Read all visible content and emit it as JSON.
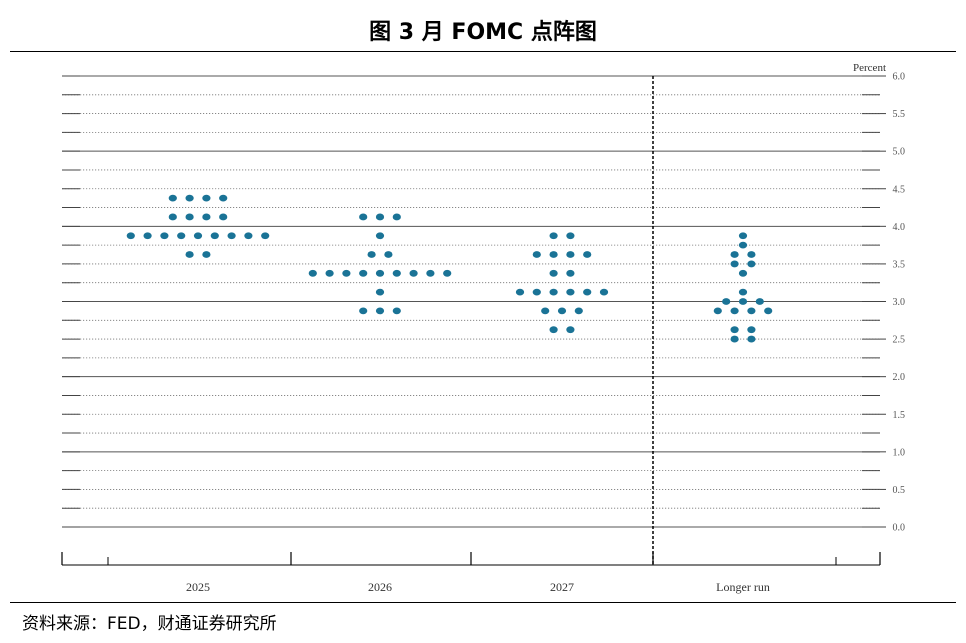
{
  "header": {
    "title": "图  3 月 FOMC 点阵图"
  },
  "footer": {
    "source": "资料来源：FED，财通证券研究所"
  },
  "chart_data": {
    "type": "scatter",
    "title": "图  3 月 FOMC 点阵图",
    "unit_label": "Percent",
    "ylim": [
      0.0,
      6.0
    ],
    "y_ticks": [
      "0.0",
      "0.5",
      "1.0",
      "1.5",
      "2.0",
      "2.5",
      "3.0",
      "3.5",
      "4.0",
      "4.5",
      "5.0",
      "5.5",
      "6.0"
    ],
    "categories": [
      "2025",
      "2026",
      "2027",
      "Longer run"
    ],
    "grid": true,
    "dot_color": "#1a7396",
    "groups": [
      {
        "category": "2025",
        "rows": [
          {
            "y": 4.375,
            "count": 4
          },
          {
            "y": 4.125,
            "count": 4
          },
          {
            "y": 3.875,
            "count": 9
          },
          {
            "y": 3.625,
            "count": 2
          }
        ]
      },
      {
        "category": "2026",
        "rows": [
          {
            "y": 4.125,
            "count": 3
          },
          {
            "y": 3.875,
            "count": 1
          },
          {
            "y": 3.625,
            "count": 2
          },
          {
            "y": 3.375,
            "count": 9
          },
          {
            "y": 3.125,
            "count": 1
          },
          {
            "y": 2.875,
            "count": 3
          }
        ]
      },
      {
        "category": "2027",
        "rows": [
          {
            "y": 3.875,
            "count": 2
          },
          {
            "y": 3.625,
            "count": 4
          },
          {
            "y": 3.375,
            "count": 2
          },
          {
            "y": 3.125,
            "count": 6
          },
          {
            "y": 2.875,
            "count": 3
          },
          {
            "y": 2.625,
            "count": 2
          }
        ]
      },
      {
        "category": "Longer run",
        "rows": [
          {
            "y": 3.875,
            "count": 1
          },
          {
            "y": 3.75,
            "count": 1
          },
          {
            "y": 3.625,
            "count": 2
          },
          {
            "y": 3.5,
            "count": 2
          },
          {
            "y": 3.375,
            "count": 1
          },
          {
            "y": 3.125,
            "count": 1
          },
          {
            "y": 3.0,
            "count": 3
          },
          {
            "y": 2.875,
            "count": 4
          },
          {
            "y": 2.625,
            "count": 2
          },
          {
            "y": 2.5,
            "count": 2
          }
        ]
      }
    ]
  }
}
